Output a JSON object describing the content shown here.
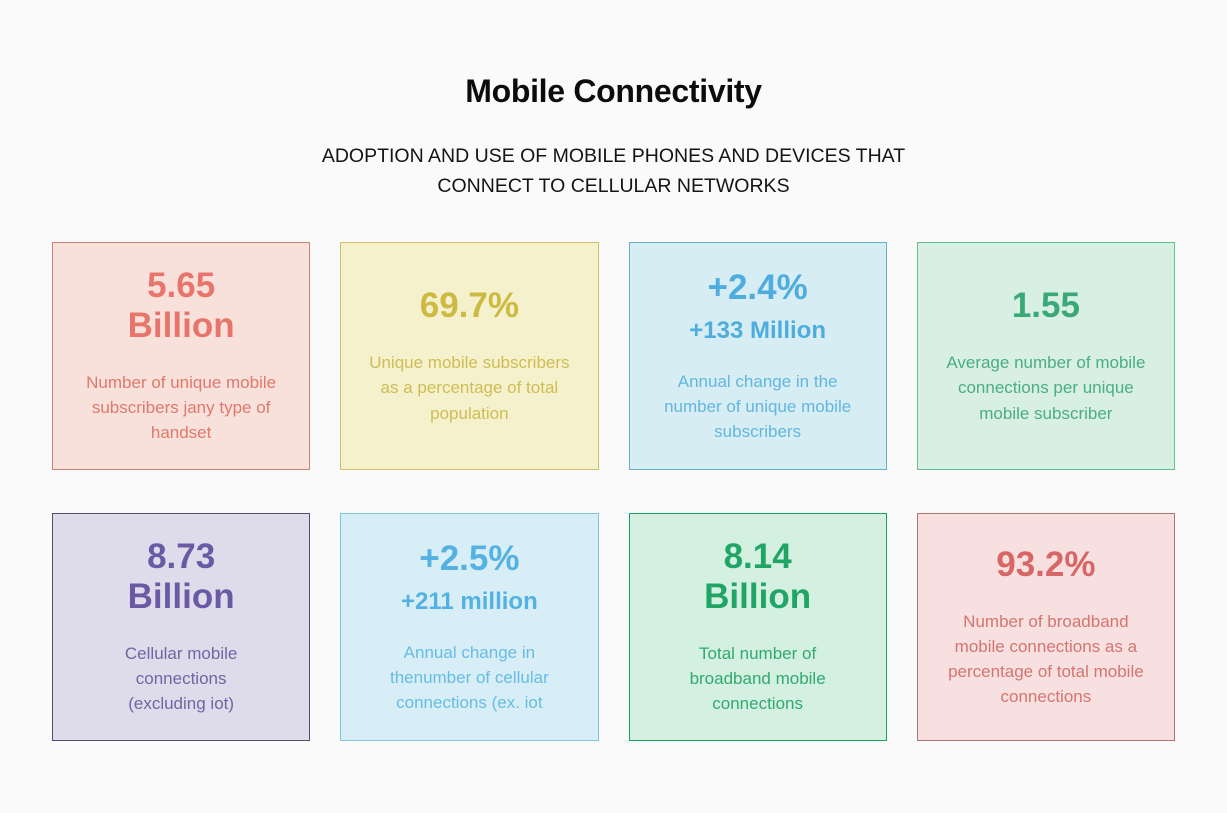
{
  "page": {
    "title": "Mobile Connectivity",
    "subtitle": "ADOPTION AND USE OF MOBILE PHONES AND DEVICES THAT\nCONNECT TO CELLULAR NETWORKS",
    "background": "#fafafa"
  },
  "cards": [
    {
      "value": "5.65\nBillion",
      "description": "Number of unique mobile\nsubscribers jany type of\nhandset",
      "colors": {
        "bg": "#f9e1db",
        "border": "#c5837b",
        "number": "#e8756b",
        "text": "#e0786d"
      }
    },
    {
      "value": "69.7%",
      "description": "Unique mobile subscribers\nas a percentage of total\npopulation",
      "colors": {
        "bg": "#f6f1cd",
        "border": "#cfc06b",
        "number": "#ccba43",
        "text": "#cebd55"
      }
    },
    {
      "value": "+2.4%",
      "subvalue": "+133 Million",
      "description": "Annual change in the\nnumber of unique mobile\nsubscribers",
      "colors": {
        "bg": "#d6edf4",
        "border": "#68b3c3",
        "number": "#4fadde",
        "text": "#62b6df"
      }
    },
    {
      "value": "1.55",
      "description": "Average number of mobile\nconnections per unique\nmobile subscriber",
      "colors": {
        "bg": "#d7f0e3",
        "border": "#66c093",
        "number": "#3ba878",
        "text": "#4bae80"
      }
    },
    {
      "value": "8.73\nBillion",
      "description": "Cellular mobile\nconnections\n(excluding iot)",
      "colors": {
        "bg": "#dedceb",
        "border": "#584b70",
        "number": "#6a5aa6",
        "text": "#7264a3"
      }
    },
    {
      "value": "+2.5%",
      "subvalue": "+211 million",
      "description": "Annual change in\nthenumber of cellular\nconnections (ex. iot",
      "colors": {
        "bg": "#d8eef6",
        "border": "#7fc6dd",
        "number": "#53b2e2",
        "text": "#67bce4"
      }
    },
    {
      "value": "8.14\nBillion",
      "description": "Total number of\nbroadband mobile\nconnections",
      "colors": {
        "bg": "#d3f0e1",
        "border": "#169f60",
        "number": "#20a566",
        "text": "#31aa6f"
      }
    },
    {
      "value": "93.2%",
      "description": "Number of broadband\nmobile connections as a\npercentage of total mobile\nconnections",
      "colors": {
        "bg": "#f9e0e0",
        "border": "#b17473",
        "number": "#d76767",
        "text": "#d37570"
      }
    }
  ],
  "chart_data": {
    "type": "table",
    "title": "Mobile Connectivity",
    "subtitle": "ADOPTION AND USE OF MOBILE PHONES AND DEVICES THAT CONNECT TO CELLULAR NETWORKS",
    "metrics": [
      {
        "value": "5.65 Billion",
        "label": "Number of unique mobile subscribers jany type of handset"
      },
      {
        "value": "69.7%",
        "label": "Unique mobile subscribers as a percentage of total population"
      },
      {
        "value": "+2.4% / +133 Million",
        "label": "Annual change in the number of unique mobile subscribers"
      },
      {
        "value": "1.55",
        "label": "Average number of mobile connections per unique mobile subscriber"
      },
      {
        "value": "8.73 Billion",
        "label": "Cellular mobile connections (excluding iot)"
      },
      {
        "value": "+2.5% / +211 million",
        "label": "Annual change in thenumber of cellular connections (ex. iot"
      },
      {
        "value": "8.14 Billion",
        "label": "Total number of broadband mobile connections"
      },
      {
        "value": "93.2%",
        "label": "Number of broadband mobile connections as a percentage of total mobile connections"
      }
    ],
    "layout": "2 rows x 4 columns of stat cards"
  }
}
